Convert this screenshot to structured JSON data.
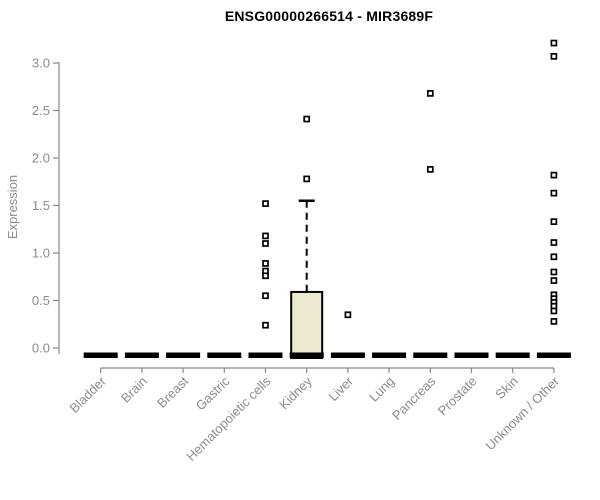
{
  "title": "ENSG00000266514 - MIR3689F",
  "chart_data": {
    "type": "boxplot",
    "title": "ENSG00000266514 - MIR3689F",
    "xlabel": "",
    "ylabel": "Expression",
    "ylim": [
      0.0,
      3.3
    ],
    "yticks": [
      "0.0",
      "0.5",
      "1.0",
      "1.5",
      "2.0",
      "2.5",
      "3.0"
    ],
    "grid": false,
    "legend": "none",
    "colors": {
      "box_fill": "#ece8cf",
      "box_stroke": "#000000",
      "axis": "#888888",
      "tick_text": "#8c8c8c"
    },
    "categories": [
      "Bladder",
      "Brain",
      "Breast",
      "Gastric",
      "Hematopoietic cells",
      "Kidney",
      "Liver",
      "Lung",
      "Pancreas",
      "Prostate",
      "Skin",
      "Unknown / Other"
    ],
    "boxes": [
      {
        "category": "Bladder",
        "q1": 0,
        "median": 0,
        "q3": 0,
        "whisker_low": 0,
        "whisker_high": 0,
        "outliers": []
      },
      {
        "category": "Brain",
        "q1": 0,
        "median": 0,
        "q3": 0,
        "whisker_low": 0,
        "whisker_high": 0,
        "outliers": []
      },
      {
        "category": "Breast",
        "q1": 0,
        "median": 0,
        "q3": 0,
        "whisker_low": 0,
        "whisker_high": 0,
        "outliers": []
      },
      {
        "category": "Gastric",
        "q1": 0,
        "median": 0,
        "q3": 0,
        "whisker_low": 0,
        "whisker_high": 0,
        "outliers": []
      },
      {
        "category": "Hematopoietic cells",
        "q1": 0,
        "median": 0,
        "q3": 0,
        "whisker_low": 0,
        "whisker_high": 0,
        "outliers": [
          1.52,
          1.18,
          1.1,
          0.89,
          0.81,
          0.76,
          0.55,
          0.24
        ]
      },
      {
        "category": "Kidney",
        "q1": 0,
        "median": 0,
        "q3": 0.59,
        "whisker_low": 0,
        "whisker_high": 1.55,
        "outliers": [
          2.41,
          1.78
        ]
      },
      {
        "category": "Liver",
        "q1": 0,
        "median": 0,
        "q3": 0,
        "whisker_low": 0,
        "whisker_high": 0,
        "outliers": [
          0.35
        ]
      },
      {
        "category": "Lung",
        "q1": 0,
        "median": 0,
        "q3": 0,
        "whisker_low": 0,
        "whisker_high": 0,
        "outliers": []
      },
      {
        "category": "Pancreas",
        "q1": 0,
        "median": 0,
        "q3": 0,
        "whisker_low": 0,
        "whisker_high": 0,
        "outliers": [
          2.68,
          1.88
        ]
      },
      {
        "category": "Prostate",
        "q1": 0,
        "median": 0,
        "q3": 0,
        "whisker_low": 0,
        "whisker_high": 0,
        "outliers": []
      },
      {
        "category": "Skin",
        "q1": 0,
        "median": 0,
        "q3": 0,
        "whisker_low": 0,
        "whisker_high": 0,
        "outliers": []
      },
      {
        "category": "Unknown / Other",
        "q1": 0,
        "median": 0,
        "q3": 0,
        "whisker_low": 0,
        "whisker_high": 0,
        "outliers": [
          3.21,
          3.07,
          1.82,
          1.63,
          1.33,
          1.11,
          0.96,
          0.8,
          0.71,
          0.56,
          0.52,
          0.48,
          0.44,
          0.39,
          0.28
        ]
      }
    ]
  }
}
